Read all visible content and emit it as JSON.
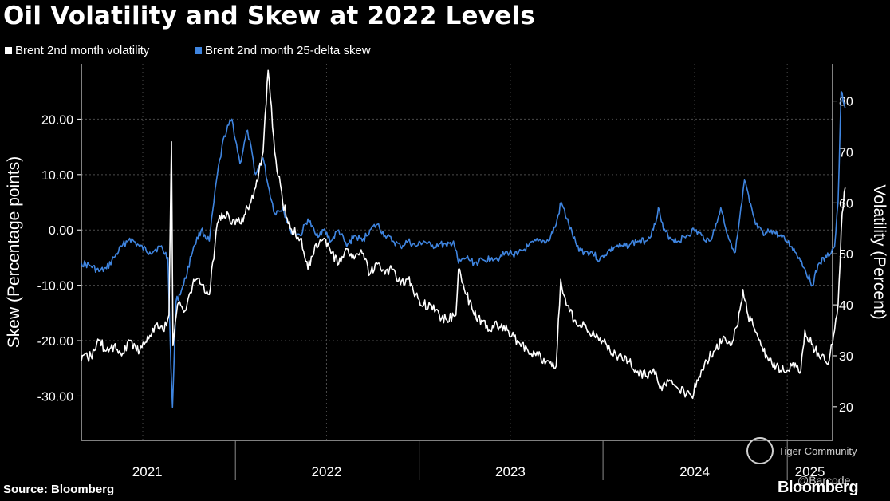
{
  "chart_data": {
    "type": "line",
    "title": "Oil Volatility and Skew at 2022 Levels",
    "source": "Source: Bloomberg",
    "brand": "Bloomberg",
    "watermarks": [
      "Tiger Community",
      "@Barcode"
    ],
    "y_left": {
      "label": "Skew (Percentage points)",
      "ticks": [
        "20.00",
        "10.00",
        "0.00",
        "-10.00",
        "-20.00",
        "-30.00"
      ],
      "range": [
        -38,
        30
      ]
    },
    "y_right": {
      "label": "Volatility (Percent)",
      "ticks": [
        "80",
        "70",
        "60",
        "50",
        "40",
        "30",
        "20"
      ],
      "range": [
        13.4,
        87.3
      ]
    },
    "x_labels": [
      "2021",
      "2022",
      "2023",
      "2024",
      "2025"
    ],
    "x_range": [
      "2021-03",
      "2025-04"
    ],
    "grid": true,
    "legend_position": "top-left",
    "colors": {
      "volatility": "#ffffff",
      "skew": "#3f85e0",
      "grid": "#4a4a4a",
      "background": "#000000"
    },
    "series": [
      {
        "name": "Brent 2nd month volatility",
        "axis": "right",
        "points": [
          [
            "2021-03-01",
            29
          ],
          [
            "2021-03-20",
            30
          ],
          [
            "2021-04-05",
            33
          ],
          [
            "2021-04-20",
            31
          ],
          [
            "2021-05-05",
            32
          ],
          [
            "2021-05-20",
            30
          ],
          [
            "2021-06-05",
            33
          ],
          [
            "2021-06-25",
            31
          ],
          [
            "2021-07-15",
            34
          ],
          [
            "2021-07-25",
            36
          ],
          [
            "2021-08-10",
            35
          ],
          [
            "2021-08-22",
            38
          ],
          [
            "2021-08-27",
            72
          ],
          [
            "2021-08-30",
            32
          ],
          [
            "2021-09-08",
            40
          ],
          [
            "2021-09-25",
            39
          ],
          [
            "2021-10-10",
            45
          ],
          [
            "2021-10-25",
            44
          ],
          [
            "2021-11-10",
            42
          ],
          [
            "2021-11-26",
            56
          ],
          [
            "2021-12-05",
            58
          ],
          [
            "2021-12-20",
            57
          ],
          [
            "2022-01-10",
            56
          ],
          [
            "2022-01-25",
            59
          ],
          [
            "2022-02-10",
            63
          ],
          [
            "2022-02-25",
            70
          ],
          [
            "2022-03-07",
            86
          ],
          [
            "2022-03-20",
            70
          ],
          [
            "2022-04-05",
            60
          ],
          [
            "2022-04-20",
            55
          ],
          [
            "2022-05-10",
            53
          ],
          [
            "2022-05-25",
            47
          ],
          [
            "2022-06-10",
            52
          ],
          [
            "2022-06-25",
            53
          ],
          [
            "2022-07-10",
            50
          ],
          [
            "2022-07-25",
            48
          ],
          [
            "2022-08-10",
            51
          ],
          [
            "2022-08-25",
            49
          ],
          [
            "2022-09-10",
            50
          ],
          [
            "2022-09-25",
            46
          ],
          [
            "2022-10-10",
            48
          ],
          [
            "2022-10-25",
            46
          ],
          [
            "2022-11-10",
            47
          ],
          [
            "2022-11-25",
            44
          ],
          [
            "2022-12-10",
            45
          ],
          [
            "2022-12-25",
            42
          ],
          [
            "2023-01-10",
            40
          ],
          [
            "2023-01-25",
            40
          ],
          [
            "2023-02-10",
            38
          ],
          [
            "2023-02-25",
            37
          ],
          [
            "2023-03-15",
            38
          ],
          [
            "2023-03-20",
            47
          ],
          [
            "2023-04-05",
            42
          ],
          [
            "2023-04-20",
            38
          ],
          [
            "2023-05-05",
            37
          ],
          [
            "2023-05-20",
            35
          ],
          [
            "2023-06-05",
            36
          ],
          [
            "2023-06-25",
            35
          ],
          [
            "2023-07-15",
            33
          ],
          [
            "2023-08-05",
            31
          ],
          [
            "2023-08-25",
            30
          ],
          [
            "2023-09-15",
            29
          ],
          [
            "2023-09-30",
            28
          ],
          [
            "2023-10-09",
            45
          ],
          [
            "2023-10-20",
            40
          ],
          [
            "2023-11-05",
            37
          ],
          [
            "2023-11-25",
            36
          ],
          [
            "2023-12-10",
            34
          ],
          [
            "2023-12-31",
            33
          ],
          [
            "2024-01-15",
            31
          ],
          [
            "2024-02-01",
            30
          ],
          [
            "2024-02-20",
            29
          ],
          [
            "2024-03-10",
            27
          ],
          [
            "2024-03-28",
            26
          ],
          [
            "2024-04-15",
            27
          ],
          [
            "2024-04-25",
            24
          ],
          [
            "2024-05-10",
            25
          ],
          [
            "2024-05-25",
            24
          ],
          [
            "2024-06-10",
            23
          ],
          [
            "2024-06-25",
            22
          ],
          [
            "2024-07-10",
            26
          ],
          [
            "2024-07-25",
            29
          ],
          [
            "2024-08-10",
            31
          ],
          [
            "2024-08-25",
            33
          ],
          [
            "2024-09-10",
            32
          ],
          [
            "2024-09-25",
            36
          ],
          [
            "2024-10-05",
            43
          ],
          [
            "2024-10-15",
            38
          ],
          [
            "2024-10-25",
            36
          ],
          [
            "2024-11-10",
            32
          ],
          [
            "2024-11-25",
            29
          ],
          [
            "2024-12-10",
            28
          ],
          [
            "2024-12-25",
            27
          ],
          [
            "2025-01-10",
            28
          ],
          [
            "2025-01-28",
            27
          ],
          [
            "2025-02-05",
            35
          ],
          [
            "2025-02-25",
            31
          ],
          [
            "2025-03-10",
            30
          ],
          [
            "2025-03-25",
            29
          ],
          [
            "2025-04-05",
            35
          ],
          [
            "2025-04-12",
            40
          ],
          [
            "2025-04-20",
            58
          ],
          [
            "2025-04-26",
            63
          ]
        ]
      },
      {
        "name": "Brent 2nd month 25-delta skew",
        "axis": "left",
        "points": [
          [
            "2021-03-01",
            -6
          ],
          [
            "2021-03-20",
            -6.5
          ],
          [
            "2021-04-05",
            -7.5
          ],
          [
            "2021-04-20",
            -7
          ],
          [
            "2021-05-05",
            -5
          ],
          [
            "2021-05-20",
            -3
          ],
          [
            "2021-06-05",
            -1.5
          ],
          [
            "2021-06-25",
            -3
          ],
          [
            "2021-07-15",
            -4
          ],
          [
            "2021-08-05",
            -3
          ],
          [
            "2021-08-20",
            -5
          ],
          [
            "2021-08-26",
            -25
          ],
          [
            "2021-08-29",
            -32
          ],
          [
            "2021-09-05",
            -13
          ],
          [
            "2021-09-20",
            -10
          ],
          [
            "2021-10-10",
            -3
          ],
          [
            "2021-10-25",
            0
          ],
          [
            "2021-11-10",
            -2
          ],
          [
            "2021-11-26",
            10
          ],
          [
            "2021-12-10",
            17
          ],
          [
            "2021-12-25",
            20
          ],
          [
            "2022-01-10",
            12
          ],
          [
            "2022-01-25",
            18
          ],
          [
            "2022-02-10",
            10
          ],
          [
            "2022-02-25",
            13
          ],
          [
            "2022-03-07",
            8
          ],
          [
            "2022-03-20",
            3
          ],
          [
            "2022-04-05",
            4
          ],
          [
            "2022-04-20",
            0
          ],
          [
            "2022-05-10",
            -1
          ],
          [
            "2022-05-25",
            2
          ],
          [
            "2022-06-10",
            -1
          ],
          [
            "2022-06-25",
            0
          ],
          [
            "2022-07-10",
            -2
          ],
          [
            "2022-07-25",
            0
          ],
          [
            "2022-08-10",
            -3
          ],
          [
            "2022-08-25",
            -1
          ],
          [
            "2022-09-10",
            -2
          ],
          [
            "2022-09-25",
            0
          ],
          [
            "2022-10-10",
            1
          ],
          [
            "2022-10-25",
            -1
          ],
          [
            "2022-11-10",
            -2
          ],
          [
            "2022-11-25",
            -3
          ],
          [
            "2022-12-10",
            -2
          ],
          [
            "2022-12-25",
            -3
          ],
          [
            "2023-01-10",
            -2
          ],
          [
            "2023-01-25",
            -3
          ],
          [
            "2023-02-10",
            -2.5
          ],
          [
            "2023-02-25",
            -3
          ],
          [
            "2023-03-10",
            -2
          ],
          [
            "2023-03-20",
            -6
          ],
          [
            "2023-04-05",
            -5
          ],
          [
            "2023-04-20",
            -6
          ],
          [
            "2023-05-10",
            -5.5
          ],
          [
            "2023-05-25",
            -5
          ],
          [
            "2023-06-10",
            -5
          ],
          [
            "2023-06-25",
            -4
          ],
          [
            "2023-07-15",
            -4.5
          ],
          [
            "2023-08-05",
            -3
          ],
          [
            "2023-08-25",
            -2
          ],
          [
            "2023-09-15",
            -2
          ],
          [
            "2023-09-30",
            1
          ],
          [
            "2023-10-10",
            5
          ],
          [
            "2023-10-25",
            1
          ],
          [
            "2023-11-10",
            -3
          ],
          [
            "2023-11-25",
            -4
          ],
          [
            "2023-12-10",
            -4
          ],
          [
            "2023-12-25",
            -5.5
          ],
          [
            "2024-01-10",
            -4
          ],
          [
            "2024-01-25",
            -3
          ],
          [
            "2024-02-10",
            -3
          ],
          [
            "2024-02-25",
            -2.5
          ],
          [
            "2024-03-10",
            -2
          ],
          [
            "2024-03-25",
            -2
          ],
          [
            "2024-04-10",
            0
          ],
          [
            "2024-04-20",
            4
          ],
          [
            "2024-04-30",
            0
          ],
          [
            "2024-05-15",
            -1.5
          ],
          [
            "2024-05-30",
            -2
          ],
          [
            "2024-06-15",
            -1
          ],
          [
            "2024-06-30",
            0
          ],
          [
            "2024-07-15",
            -1
          ],
          [
            "2024-07-30",
            -2
          ],
          [
            "2024-08-10",
            0
          ],
          [
            "2024-08-22",
            4
          ],
          [
            "2024-09-05",
            -1
          ],
          [
            "2024-09-20",
            -4
          ],
          [
            "2024-10-03",
            5
          ],
          [
            "2024-10-08",
            9
          ],
          [
            "2024-10-18",
            5
          ],
          [
            "2024-10-30",
            1
          ],
          [
            "2024-11-15",
            -1
          ],
          [
            "2024-11-30",
            0
          ],
          [
            "2024-12-15",
            -1
          ],
          [
            "2024-12-30",
            -2
          ],
          [
            "2025-01-10",
            -3
          ],
          [
            "2025-01-25",
            -5
          ],
          [
            "2025-02-05",
            -7
          ],
          [
            "2025-02-20",
            -10
          ],
          [
            "2025-03-05",
            -6
          ],
          [
            "2025-03-20",
            -5
          ],
          [
            "2025-04-05",
            -3
          ],
          [
            "2025-04-12",
            5
          ],
          [
            "2025-04-18",
            25
          ],
          [
            "2025-04-26",
            22
          ]
        ]
      }
    ]
  }
}
